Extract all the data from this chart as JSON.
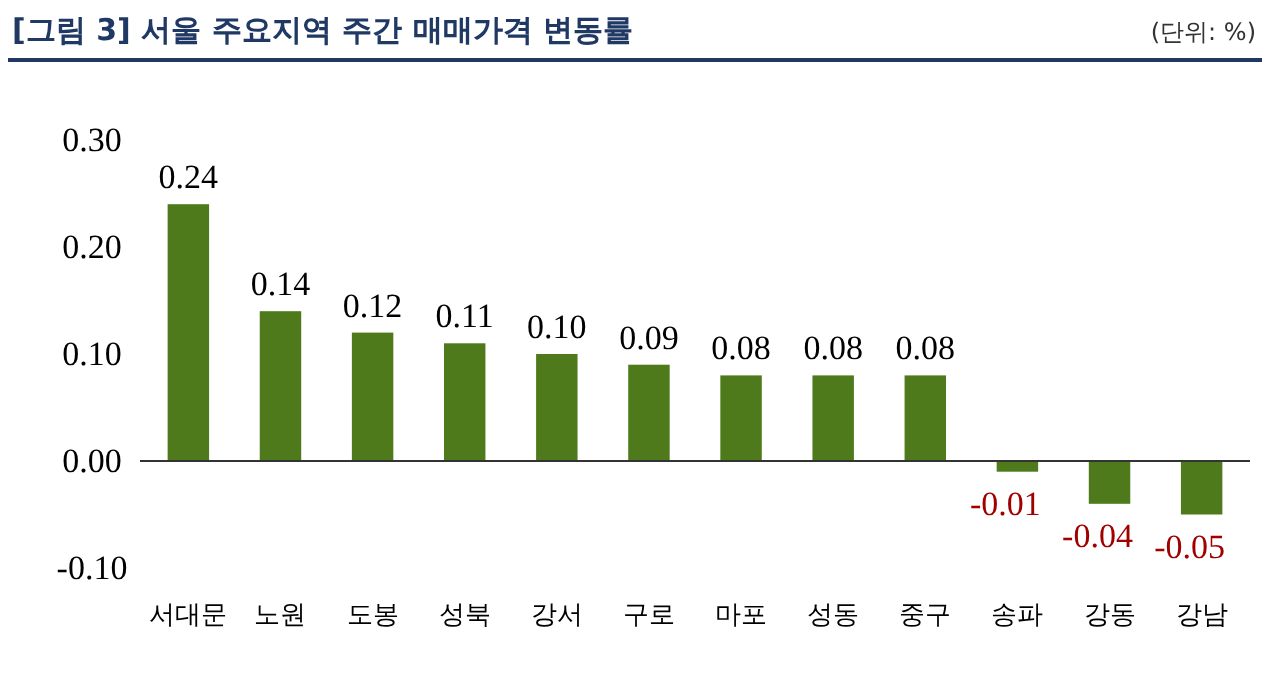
{
  "chart_data": {
    "type": "bar",
    "title": "[그림 3] 서울 주요지역 주간 매매가격 변동률",
    "subtitle": "(단위: %)",
    "categories": [
      "서대문",
      "노원",
      "도봉",
      "성북",
      "강서",
      "구로",
      "마포",
      "성동",
      "중구",
      "송파",
      "강동",
      "강남"
    ],
    "values": [
      0.24,
      0.14,
      0.12,
      0.11,
      0.1,
      0.09,
      0.08,
      0.08,
      0.08,
      -0.01,
      -0.04,
      -0.05
    ],
    "value_labels": [
      "0.24",
      "0.14",
      "0.12",
      "0.11",
      "0.10",
      "0.09",
      "0.08",
      "0.08",
      "0.08",
      "-0.01",
      "-0.04",
      "-0.05"
    ],
    "color": "#4e7a1c",
    "ylim": [
      -0.1,
      0.3
    ],
    "yticks": [
      {
        "value": -0.1,
        "label": "-0.10"
      },
      {
        "value": 0,
        "label": "0.00"
      },
      {
        "value": 0.1,
        "label": "0.10"
      },
      {
        "value": 0.2,
        "label": "0.20"
      },
      {
        "value": 0.3,
        "label": "0.30"
      }
    ]
  }
}
